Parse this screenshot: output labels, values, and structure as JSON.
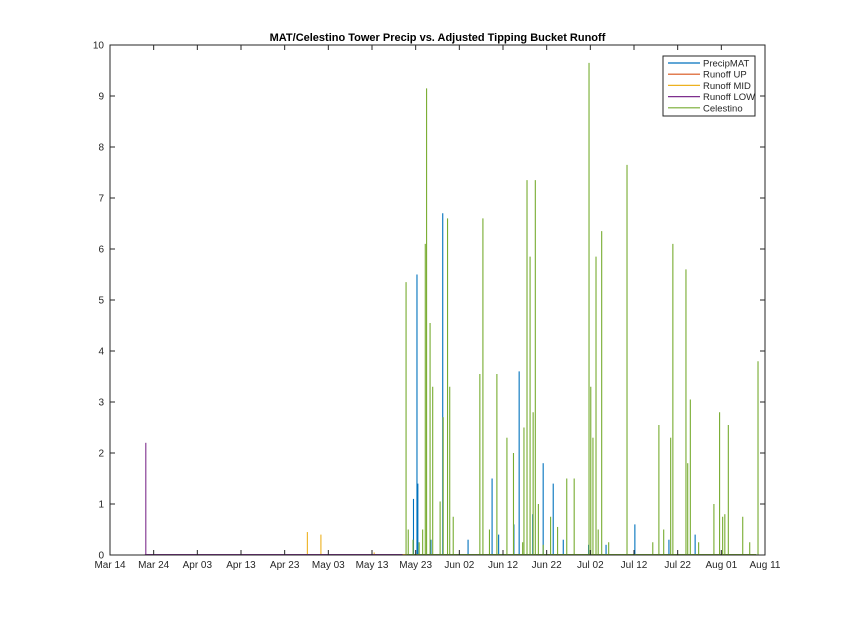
{
  "chart_data": {
    "type": "line",
    "title": "MAT/Celestino Tower Precip vs. Adjusted Tipping Bucket Runoff",
    "xlabel": "",
    "ylabel": "",
    "x_unit": "days since Mar 14",
    "xlim": [
      0,
      150
    ],
    "ylim": [
      0,
      10
    ],
    "yticks": [
      0,
      1,
      2,
      3,
      4,
      5,
      6,
      7,
      8,
      9,
      10
    ],
    "xticks": [
      {
        "day": 0,
        "label": "Mar 14"
      },
      {
        "day": 10,
        "label": "Mar 24"
      },
      {
        "day": 20,
        "label": "Apr 03"
      },
      {
        "day": 30,
        "label": "Apr 13"
      },
      {
        "day": 40,
        "label": "Apr 23"
      },
      {
        "day": 50,
        "label": "May 03"
      },
      {
        "day": 60,
        "label": "May 13"
      },
      {
        "day": 70,
        "label": "May 23"
      },
      {
        "day": 80,
        "label": "Jun 02"
      },
      {
        "day": 90,
        "label": "Jun 12"
      },
      {
        "day": 100,
        "label": "Jun 22"
      },
      {
        "day": 110,
        "label": "Jul 02"
      },
      {
        "day": 120,
        "label": "Jul 12"
      },
      {
        "day": 130,
        "label": "Jul 22"
      },
      {
        "day": 140,
        "label": "Aug 01"
      },
      {
        "day": 150,
        "label": "Aug 11"
      }
    ],
    "legend_position": "top-right",
    "series": [
      {
        "name": "PrecipMAT",
        "color": "#0072bd",
        "baseline_range": [
          72,
          148
        ],
        "spikes": [
          [
            69.5,
            1.1
          ],
          [
            70.3,
            5.5
          ],
          [
            70.5,
            1.4
          ],
          [
            73.5,
            0.3
          ],
          [
            76.2,
            6.7
          ],
          [
            82,
            0.3
          ],
          [
            87.5,
            1.5
          ],
          [
            89,
            0.4
          ],
          [
            92.5,
            0.6
          ],
          [
            93.7,
            3.6
          ],
          [
            96.8,
            0.8
          ],
          [
            99.2,
            1.8
          ],
          [
            101.5,
            1.4
          ],
          [
            103.8,
            0.3
          ],
          [
            109.6,
            0.2
          ],
          [
            113.6,
            0.2
          ],
          [
            120.2,
            0.6
          ],
          [
            128,
            0.3
          ],
          [
            134,
            0.4
          ]
        ]
      },
      {
        "name": "Runoff UP",
        "color": "#d95319",
        "baseline_range": [
          8,
          70
        ],
        "spikes": []
      },
      {
        "name": "Runoff MID",
        "color": "#edb120",
        "baseline_range": [
          40,
          70
        ],
        "spikes": [
          [
            45.2,
            0.45
          ],
          [
            48.3,
            0.4
          ],
          [
            60.5,
            0.05
          ]
        ]
      },
      {
        "name": "Runoff LOW",
        "color": "#7e2f8e",
        "baseline_range": [
          8,
          67
        ],
        "spikes": [
          [
            8.2,
            2.2
          ]
        ]
      },
      {
        "name": "Celestino",
        "color": "#77ac30",
        "baseline_range": [
          68,
          148
        ],
        "spikes": [
          [
            67.8,
            5.35
          ],
          [
            68.3,
            0.5
          ],
          [
            69.4,
            0.3
          ],
          [
            70.8,
            0.25
          ],
          [
            71.6,
            0.5
          ],
          [
            72.2,
            6.1
          ],
          [
            72.5,
            9.15
          ],
          [
            73.3,
            4.55
          ],
          [
            73.9,
            3.3
          ],
          [
            75.6,
            1.05
          ],
          [
            76.3,
            2.7
          ],
          [
            77.3,
            6.6
          ],
          [
            77.8,
            3.3
          ],
          [
            78.6,
            0.75
          ],
          [
            84.7,
            3.55
          ],
          [
            85.4,
            6.6
          ],
          [
            86.9,
            0.5
          ],
          [
            88.6,
            3.55
          ],
          [
            90.9,
            2.3
          ],
          [
            92.4,
            2.0
          ],
          [
            94.5,
            0.25
          ],
          [
            94.8,
            2.5
          ],
          [
            95.5,
            7.35
          ],
          [
            96.2,
            5.85
          ],
          [
            96.9,
            2.8
          ],
          [
            97.4,
            7.35
          ],
          [
            98.1,
            1.0
          ],
          [
            99.2,
            0.2
          ],
          [
            100.9,
            0.75
          ],
          [
            102.5,
            0.55
          ],
          [
            104.6,
            1.5
          ],
          [
            106.3,
            1.5
          ],
          [
            109.7,
            9.65
          ],
          [
            110.1,
            3.3
          ],
          [
            110.6,
            2.3
          ],
          [
            111.3,
            5.85
          ],
          [
            111.8,
            0.5
          ],
          [
            112.6,
            6.35
          ],
          [
            114.2,
            0.25
          ],
          [
            118.4,
            7.65
          ],
          [
            124.3,
            0.25
          ],
          [
            125.7,
            2.55
          ],
          [
            126.8,
            0.5
          ],
          [
            128.4,
            2.3
          ],
          [
            128.9,
            6.1
          ],
          [
            131.9,
            5.6
          ],
          [
            132.3,
            1.8
          ],
          [
            132.9,
            3.05
          ],
          [
            134.8,
            0.25
          ],
          [
            138.3,
            1.0
          ],
          [
            139.6,
            2.8
          ],
          [
            140.3,
            0.75
          ],
          [
            140.8,
            0.8
          ],
          [
            141.6,
            2.55
          ],
          [
            144.9,
            0.75
          ],
          [
            146.5,
            0.25
          ],
          [
            148.4,
            3.8
          ]
        ]
      }
    ]
  }
}
